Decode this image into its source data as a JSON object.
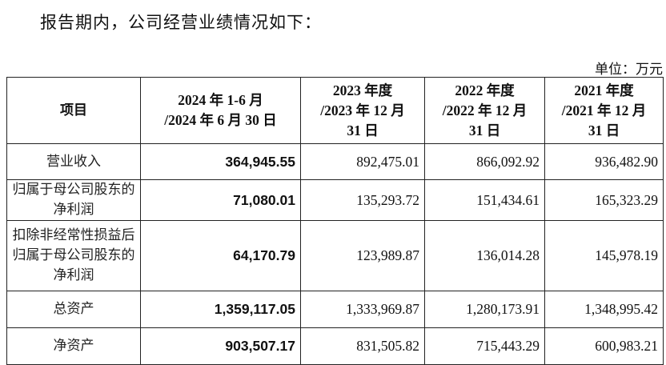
{
  "intro": "报告期内，公司经营业绩情况如下：",
  "unit": "单位：万元",
  "table": {
    "headers": [
      "项目",
      "2024 年 1-6 月\n/2024 年 6 月 30 日",
      "2023 年度\n/2023 年 12 月\n31 日",
      "2022 年度\n/2022 年 12 月\n31 日",
      "2021 年度\n/2021 年 12 月\n31 日"
    ],
    "rows": [
      {
        "label": "营业收入",
        "values": [
          "364,945.55",
          "892,475.01",
          "866,092.92",
          "936,482.90"
        ]
      },
      {
        "label": "归属于母公司股东的净利润",
        "values": [
          "71,080.01",
          "135,293.72",
          "151,434.61",
          "165,323.29"
        ]
      },
      {
        "label": "扣除非经常性损益后归属于母公司股东的净利润",
        "values": [
          "64,170.79",
          "123,989.87",
          "136,014.28",
          "145,978.19"
        ]
      },
      {
        "label": "总资产",
        "values": [
          "1,359,117.05",
          "1,333,969.87",
          "1,280,173.91",
          "1,348,995.42"
        ]
      },
      {
        "label": "净资产",
        "values": [
          "903,507.17",
          "831,505.82",
          "715,443.29",
          "600,983.21"
        ]
      }
    ]
  }
}
